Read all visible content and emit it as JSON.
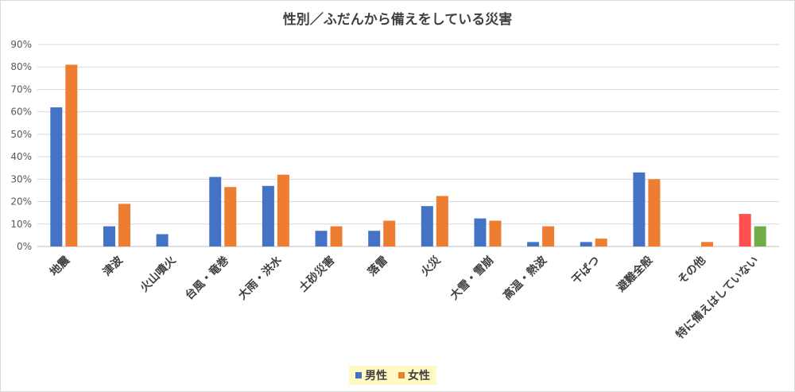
{
  "chart_data": {
    "type": "bar",
    "title": "性別／ふだんから備えをしている災害",
    "categories": [
      "地震",
      "津波",
      "火山噴火",
      "台風・竜巻",
      "大雨・洪水",
      "土砂災害",
      "落雷",
      "火災",
      "大雪・雪崩",
      "高温・熱波",
      "干ばつ",
      "避難全般",
      "その他",
      "特に備えはしていない"
    ],
    "series": [
      {
        "name": "男性",
        "color": "#4472c4",
        "values": [
          62,
          9,
          5.5,
          31,
          27,
          7,
          7,
          18,
          12.5,
          2,
          2,
          33,
          0,
          14.5
        ]
      },
      {
        "name": "女性",
        "color": "#ed7d31",
        "values": [
          81,
          19,
          0,
          26.5,
          32,
          9,
          11.5,
          22.5,
          11.5,
          9,
          3.5,
          30,
          2,
          9
        ]
      }
    ],
    "special_colors": {
      "last_category_male": "#ff4f4f",
      "last_category_female": "#70ad47"
    },
    "ylim": [
      0,
      90
    ],
    "yticks": [
      0,
      10,
      20,
      30,
      40,
      50,
      60,
      70,
      80,
      90
    ],
    "ytick_labels": [
      "0%",
      "10%",
      "20%",
      "30%",
      "40%",
      "50%",
      "60%",
      "70%",
      "80%",
      "90%"
    ],
    "grid": true,
    "legend_position": "bottom"
  }
}
